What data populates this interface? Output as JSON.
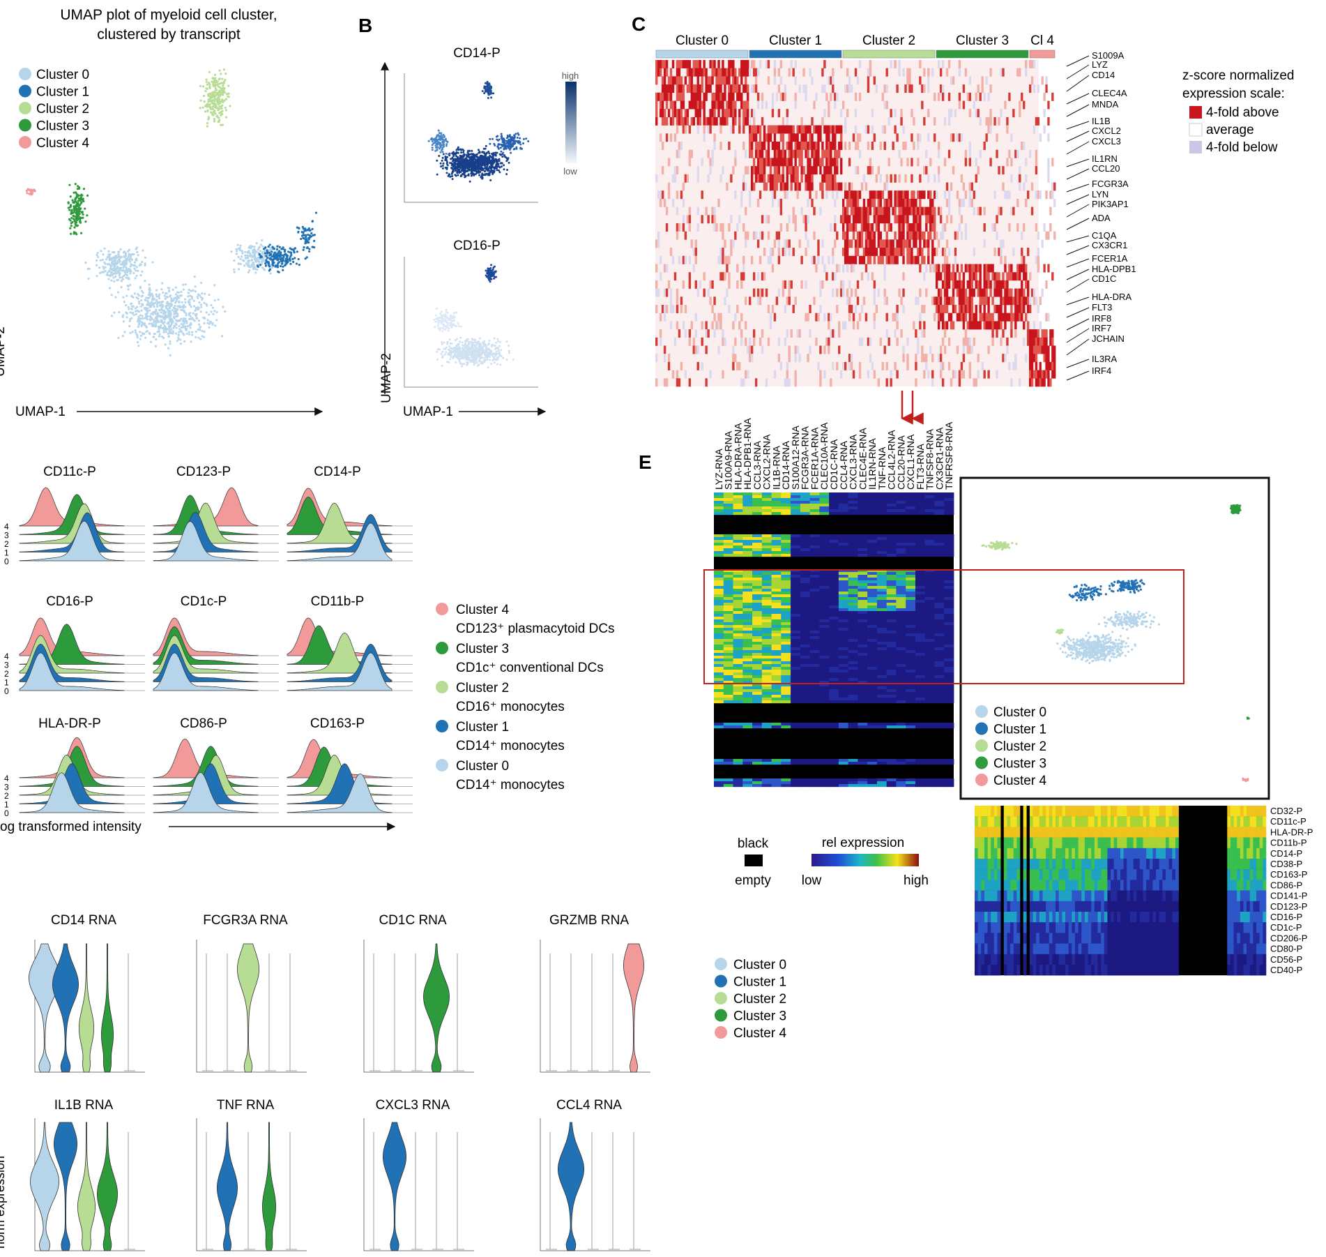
{
  "panels": {
    "a": {
      "title_line1": "UMAP plot of myeloid cell cluster,",
      "title_line2": "clustered by transcript",
      "x_label": "UMAP-1",
      "y_label": "UMAP-2"
    },
    "b": {
      "letter": "B",
      "top_title": "CD14-P",
      "bottom_title": "CD16-P",
      "scale_high": "high",
      "scale_low": "low",
      "x_label": "UMAP-1",
      "y_label": "UMAP-2"
    },
    "c": {
      "letter": "C",
      "cluster_headers": [
        "Cluster 0",
        "Cluster 1",
        "Cluster 2",
        "Cluster 3",
        "Cl 4"
      ],
      "genes": [
        "S1009A",
        "LYZ",
        "CD14",
        "CLEC4A",
        "MNDA",
        "IL1B",
        "CXCL2",
        "CXCL3",
        "IL1RN",
        "CCL20",
        "FCGR3A",
        "LYN",
        "PIK3AP1",
        "ADA",
        "C1QA",
        "CX3CR1",
        "FCER1A",
        "HLA-DPB1",
        "CD1C",
        "HLA-DRA",
        "FLT3",
        "IRF8",
        "IRF7",
        "JCHAIN",
        "IL3RA",
        "IRF4"
      ],
      "legend_title_line1": "z-score normalized",
      "legend_title_line2": "expression scale:",
      "legend_items": [
        "4-fold above",
        "average",
        "4-fold below"
      ]
    },
    "d": {
      "markers": [
        "CD11c-P",
        "CD123-P",
        "CD14-P",
        "CD16-P",
        "CD1c-P",
        "CD11b-P",
        "HLA-DR-P",
        "CD86-P",
        "CD163-P"
      ],
      "y_ticks": [
        "4",
        "3",
        "2",
        "1",
        "0"
      ],
      "x_label": "og transformed intensity",
      "legend": [
        {
          "cluster": "Cluster 4",
          "desc": "CD123⁺ plasmacytoid DCs"
        },
        {
          "cluster": "Cluster 3",
          "desc": "CD1c⁺ conventional DCs"
        },
        {
          "cluster": "Cluster 2",
          "desc": "CD16⁺ monocytes"
        },
        {
          "cluster": "Cluster 1",
          "desc": "CD14⁺ monocytes"
        },
        {
          "cluster": "Cluster 0",
          "desc": "CD14⁺ monocytes"
        }
      ]
    },
    "e": {
      "letter": "E",
      "rna_columns": [
        "LYZ-RNA",
        "S100A9-RNA",
        "HLA-DRA-RNA",
        "HLA-DPB1-RNA",
        "CCL3-RNA",
        "CXCL2-RNA",
        "IL1B-RNA",
        "CD14-RNA",
        "S100A12-RNA",
        "FCGR3A-RNA",
        "FCER1A-RNA",
        "CLEC10A-RNA",
        "CD1C-RNA",
        "CCL4-RNA",
        "CXCL3-RNA",
        "CLEC4E-RNA",
        "IL1RN-RNA",
        "TNF-RNA",
        "CCL4L2-RNA",
        "CCL20-RNA",
        "CXCL1-RNA",
        "FLT3-RNA",
        "TNFSF8-RNA",
        "CX3CR1-RNA",
        "TNFRSF8-RNA"
      ],
      "protein_rows": [
        "CD32-P",
        "CD11c-P",
        "HLA-DR-P",
        "CD11b-P",
        "CD14-P",
        "CD38-P",
        "CD163-P",
        "CD86-P",
        "CD141-P",
        "CD123-P",
        "CD16-P",
        "CD1c-P",
        "CD206-P",
        "CD80-P",
        "CD56-P",
        "CD40-P"
      ],
      "black_label": "black",
      "empty_label": "empty",
      "rel_label": "rel expression",
      "low_label": "low",
      "high_label": "high"
    },
    "f": {
      "violin_titles": [
        "CD14 RNA",
        "FCGR3A RNA",
        "CD1C RNA",
        "GRZMB RNA",
        "IL1B RNA",
        "TNF RNA",
        "CXCL3 RNA",
        "CCL4 RNA"
      ],
      "y_label": "norm expression"
    }
  },
  "clusters": [
    {
      "label": "Cluster 0",
      "color": "#b6d5ea"
    },
    {
      "label": "Cluster 1",
      "color": "#2171b5"
    },
    {
      "label": "Cluster 2",
      "color": "#b7dd94"
    },
    {
      "label": "Cluster 3",
      "color": "#2d9a3c"
    },
    {
      "label": "Cluster 4",
      "color": "#f2999a"
    }
  ]
}
